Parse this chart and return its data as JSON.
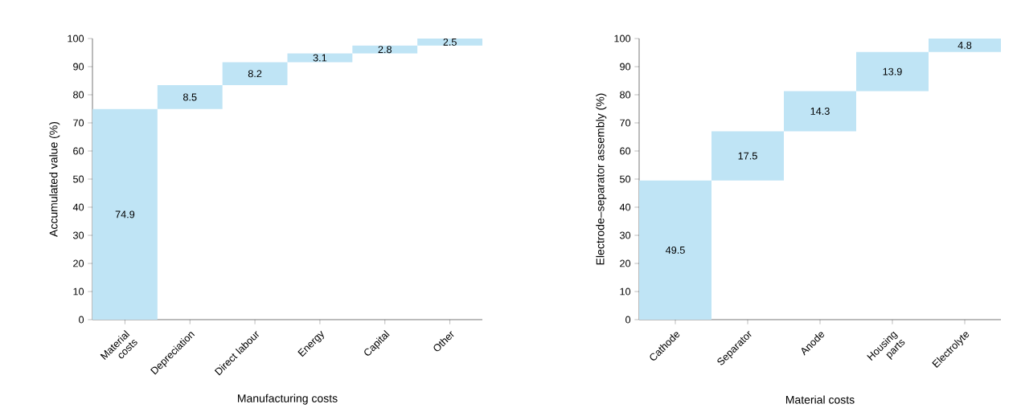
{
  "chart_data": [
    {
      "type": "bar",
      "categories": [
        "Material costs",
        "Depreciation",
        "Direct labour",
        "Energy",
        "Capital",
        "Other"
      ],
      "values": [
        74.9,
        8.5,
        8.2,
        3.1,
        2.8,
        2.5
      ],
      "base": [
        0,
        74.9,
        83.4,
        91.6,
        94.7,
        97.5
      ],
      "color": "#bfe4f5",
      "xlabel": "Manufacturing costs",
      "ylabel": "Accumulated value (%)",
      "ylim": [
        0,
        100
      ],
      "yticks": [
        0,
        10,
        20,
        30,
        40,
        50,
        60,
        70,
        80,
        90,
        100
      ],
      "data_labels": true
    },
    {
      "type": "bar",
      "categories": [
        "Cathode",
        "Separator",
        "Anode",
        "Housing parts",
        "Electrolyte"
      ],
      "values": [
        49.5,
        17.5,
        14.3,
        13.9,
        4.8
      ],
      "base": [
        0,
        49.5,
        67.0,
        81.3,
        95.2
      ],
      "color": "#bfe4f5",
      "xlabel": "Material costs",
      "ylabel": "Electrode–separator assembly (%)",
      "ylim": [
        0,
        100
      ],
      "yticks": [
        0,
        10,
        20,
        30,
        40,
        50,
        60,
        70,
        80,
        90,
        100
      ],
      "data_labels": true
    }
  ]
}
